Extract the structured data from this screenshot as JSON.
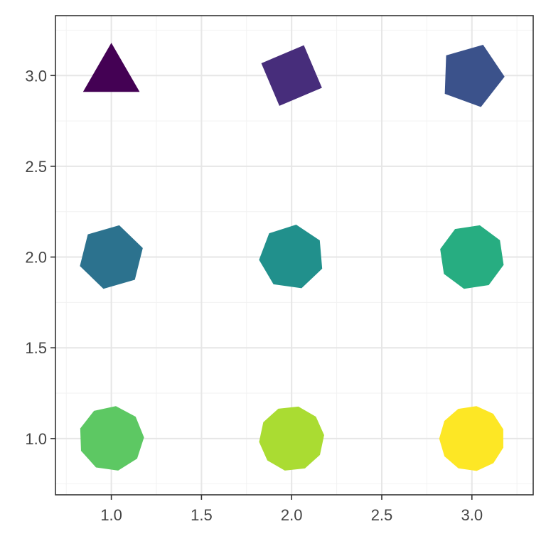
{
  "chart_data": {
    "type": "scatter",
    "title": "",
    "xlabel": "",
    "ylabel": "",
    "xlim": [
      0.69,
      3.34
    ],
    "ylim": [
      0.69,
      3.33
    ],
    "grid": true,
    "x_ticks": [
      1.0,
      1.5,
      2.0,
      2.5,
      3.0
    ],
    "y_ticks": [
      1.0,
      1.5,
      2.0,
      2.5,
      3.0
    ],
    "x_tick_labels": [
      "1.0",
      "1.5",
      "2.0",
      "2.5",
      "3.0"
    ],
    "y_tick_labels": [
      "1.0",
      "1.5",
      "2.0",
      "2.5",
      "3.0"
    ],
    "points": [
      {
        "x": 1,
        "y": 3,
        "sides": 3,
        "angle": 0,
        "color": "#440154"
      },
      {
        "x": 2,
        "y": 3,
        "sides": 4,
        "angle": 22,
        "color": "#472D7B"
      },
      {
        "x": 3,
        "y": 3,
        "sides": 5,
        "angle": 20,
        "color": "#3B528B"
      },
      {
        "x": 1,
        "y": 2,
        "sides": 6,
        "angle": 14,
        "color": "#2C728E"
      },
      {
        "x": 2,
        "y": 2,
        "sides": 7,
        "angle": 8,
        "color": "#21908C"
      },
      {
        "x": 3,
        "y": 2,
        "sides": 8,
        "angle": 14,
        "color": "#27AD81"
      },
      {
        "x": 1,
        "y": 1,
        "sides": 9,
        "angle": 8,
        "color": "#5DC863"
      },
      {
        "x": 2,
        "y": 1,
        "sides": 10,
        "angle": 12,
        "color": "#AADC32"
      },
      {
        "x": 3,
        "y": 1,
        "sides": 11,
        "angle": 8,
        "color": "#FDE725"
      }
    ]
  },
  "colors": {
    "panel_border": "#333333",
    "grid_major": "#E6E6E6",
    "grid_minor": "#F2F2F2",
    "tick_text": "#444444"
  }
}
